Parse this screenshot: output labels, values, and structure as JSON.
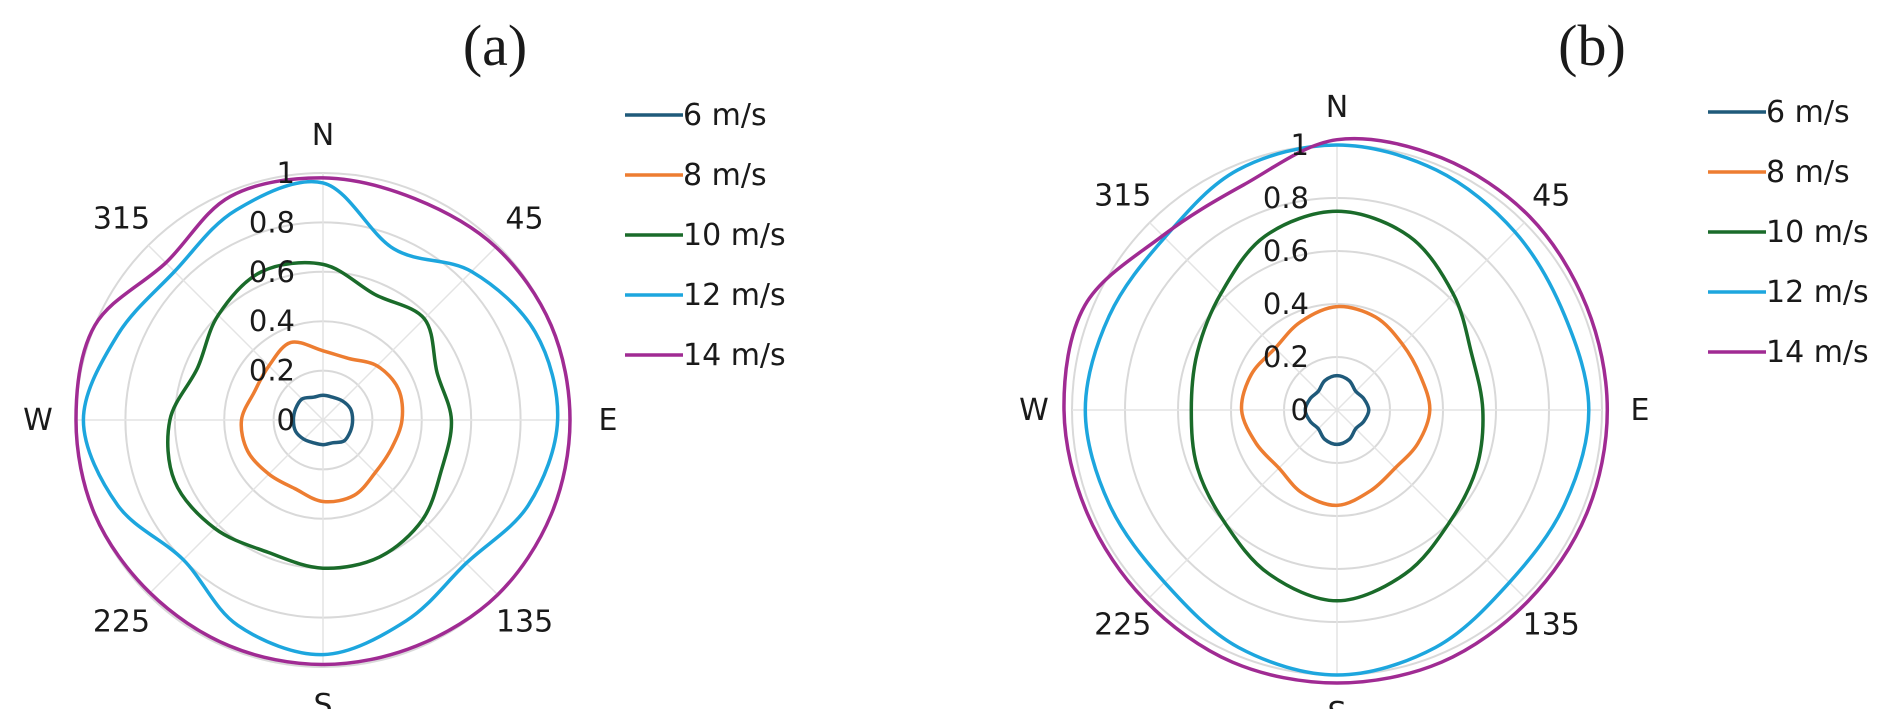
{
  "chart_data": [
    {
      "panel_label": "(a)",
      "type": "polar-line",
      "theta_unit": "degrees clockwise from N",
      "theta": [
        0,
        22.5,
        45,
        67.5,
        90,
        112.5,
        135,
        157.5,
        180,
        202.5,
        225,
        247.5,
        270,
        292.5,
        315,
        337.5
      ],
      "direction_labels": [
        {
          "angle": 0,
          "text": "N"
        },
        {
          "angle": 45,
          "text": "45"
        },
        {
          "angle": 90,
          "text": "E"
        },
        {
          "angle": 135,
          "text": "135"
        },
        {
          "angle": 180,
          "text": "S"
        },
        {
          "angle": 225,
          "text": "225"
        },
        {
          "angle": 270,
          "text": "W"
        },
        {
          "angle": 315,
          "text": "315"
        }
      ],
      "r_ticks": [
        "0",
        "0.2",
        "0.4",
        "0.6",
        "0.8",
        "1"
      ],
      "rlim": [
        0,
        1
      ],
      "grid": true,
      "legend_position": "right",
      "series": [
        {
          "name": "6 m/s",
          "color": "#1f5a7a",
          "values": [
            0.1,
            0.1,
            0.11,
            0.12,
            0.12,
            0.12,
            0.12,
            0.1,
            0.1,
            0.1,
            0.11,
            0.12,
            0.12,
            0.12,
            0.12,
            0.1
          ]
        },
        {
          "name": "8 m/s",
          "color": "#ed7d31",
          "values": [
            0.28,
            0.27,
            0.31,
            0.33,
            0.32,
            0.3,
            0.3,
            0.33,
            0.33,
            0.3,
            0.31,
            0.33,
            0.33,
            0.3,
            0.31,
            0.34
          ]
        },
        {
          "name": "10 m/s",
          "color": "#1a6b2a",
          "values": [
            0.63,
            0.55,
            0.58,
            0.5,
            0.52,
            0.52,
            0.57,
            0.6,
            0.6,
            0.58,
            0.62,
            0.65,
            0.62,
            0.55,
            0.6,
            0.65
          ]
        },
        {
          "name": "12 m/s",
          "color": "#1da6de",
          "values": [
            0.96,
            0.75,
            0.85,
            0.93,
            0.95,
            0.9,
            0.82,
            0.88,
            0.95,
            0.9,
            0.8,
            0.9,
            0.97,
            0.9,
            0.85,
            0.92
          ]
        },
        {
          "name": "14 m/s",
          "color": "#a02b93",
          "values": [
            0.98,
            0.97,
            0.99,
            1.0,
            1.0,
            1.0,
            1.0,
            0.99,
            0.99,
            0.99,
            0.99,
            1.0,
            1.0,
            1.0,
            0.9,
            0.98
          ]
        }
      ]
    },
    {
      "panel_label": "(b)",
      "type": "polar-line",
      "theta_unit": "degrees clockwise from N",
      "theta": [
        0,
        22.5,
        45,
        67.5,
        90,
        112.5,
        135,
        157.5,
        180,
        202.5,
        225,
        247.5,
        270,
        292.5,
        315,
        337.5
      ],
      "direction_labels": [
        {
          "angle": 0,
          "text": "N"
        },
        {
          "angle": 45,
          "text": "45"
        },
        {
          "angle": 90,
          "text": "E"
        },
        {
          "angle": 135,
          "text": "135"
        },
        {
          "angle": 180,
          "text": "S"
        },
        {
          "angle": 225,
          "text": "225"
        },
        {
          "angle": 270,
          "text": "W"
        },
        {
          "angle": 315,
          "text": "315"
        }
      ],
      "r_ticks": [
        "0",
        "0.2",
        "0.4",
        "0.6",
        "0.8",
        "1"
      ],
      "rlim": [
        0,
        1
      ],
      "grid": true,
      "legend_position": "right",
      "series": [
        {
          "name": "6 m/s",
          "color": "#1f5a7a",
          "values": [
            0.13,
            0.12,
            0.1,
            0.11,
            0.12,
            0.11,
            0.1,
            0.12,
            0.13,
            0.12,
            0.1,
            0.11,
            0.12,
            0.11,
            0.1,
            0.12
          ]
        },
        {
          "name": "8 m/s",
          "color": "#ed7d31",
          "values": [
            0.39,
            0.38,
            0.35,
            0.34,
            0.35,
            0.33,
            0.31,
            0.33,
            0.36,
            0.34,
            0.31,
            0.33,
            0.36,
            0.35,
            0.33,
            0.36
          ]
        },
        {
          "name": "10 m/s",
          "color": "#1a6b2a",
          "values": [
            0.75,
            0.71,
            0.62,
            0.55,
            0.55,
            0.57,
            0.6,
            0.67,
            0.72,
            0.67,
            0.6,
            0.57,
            0.55,
            0.57,
            0.62,
            0.71
          ]
        },
        {
          "name": "12 m/s",
          "color": "#1da6de",
          "values": [
            1.0,
            0.98,
            0.95,
            0.93,
            0.95,
            0.93,
            0.92,
            0.97,
            1.0,
            0.97,
            0.92,
            0.93,
            0.95,
            0.93,
            0.92,
            0.98
          ]
        },
        {
          "name": "14 m/s",
          "color": "#a02b93",
          "values": [
            1.02,
            1.03,
            1.03,
            1.02,
            1.02,
            1.02,
            1.02,
            1.03,
            1.03,
            1.03,
            1.02,
            1.02,
            1.03,
            1.03,
            0.93,
            0.92
          ]
        }
      ]
    }
  ]
}
